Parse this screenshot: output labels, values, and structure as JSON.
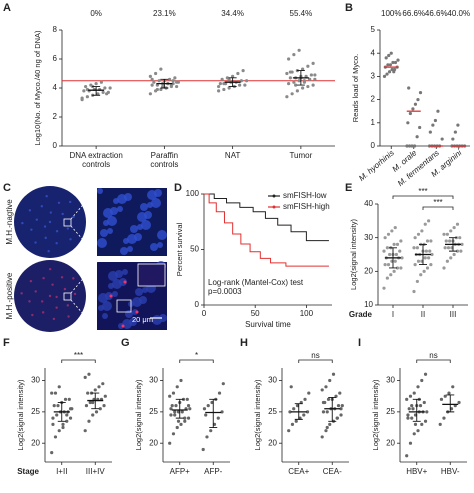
{
  "image_panel": {
    "label": "C",
    "rows": [
      "M.H.-nagtive",
      "M.H.-positive"
    ],
    "scale_bar": "20 μm"
  },
  "chart_data": [
    {
      "type": "dot",
      "label": "A",
      "ylabel": "Log10(No. of Myco./40 ng of DNA)",
      "categories": [
        "DNA extraction\ncontrols",
        "Paraffin\ncontrols",
        "NAT",
        "Tumor"
      ],
      "group_labels": [
        "0%",
        "23.1%",
        "34.4%",
        "55.4%"
      ],
      "values": [
        [
          3.2,
          3.4,
          3.5,
          3.6,
          3.7,
          3.7,
          3.8,
          3.8,
          3.9,
          3.9,
          4.0,
          4.0,
          4.1,
          4.2,
          4.3,
          4.4,
          3.6,
          3.3,
          3.9,
          4.1
        ],
        [
          3.6,
          3.8,
          3.9,
          4.0,
          4.1,
          4.1,
          4.2,
          4.2,
          4.3,
          4.3,
          4.3,
          4.4,
          4.4,
          4.5,
          4.5,
          4.6,
          4.7,
          4.8,
          5.0,
          5.3,
          4.0,
          4.2,
          4.4,
          4.6,
          3.9,
          4.1,
          4.3,
          4.5
        ],
        [
          3.8,
          3.9,
          4.0,
          4.1,
          4.2,
          4.2,
          4.3,
          4.3,
          4.4,
          4.4,
          4.5,
          4.5,
          4.6,
          4.7,
          4.8,
          5.0,
          5.2,
          4.1,
          4.3,
          4.6
        ],
        [
          3.4,
          3.6,
          3.8,
          4.0,
          4.1,
          4.2,
          4.3,
          4.4,
          4.5,
          4.5,
          4.6,
          4.6,
          4.7,
          4.7,
          4.8,
          4.8,
          4.9,
          5.0,
          5.1,
          5.2,
          5.3,
          5.5,
          5.7,
          6.0,
          6.3,
          6.6,
          4.4,
          4.6,
          4.9,
          5.1,
          4.2,
          4.7
        ]
      ],
      "centers": [
        3.85,
        4.3,
        4.4,
        4.7
      ],
      "error_bars": [
        [
          3.5,
          4.1
        ],
        [
          4.0,
          4.6
        ],
        [
          4.1,
          4.7
        ],
        [
          4.2,
          5.2
        ]
      ],
      "reference_line": 4.5,
      "reference_color": "#e03030",
      "dot_color": "#8a8a8a",
      "center_color": "#111111",
      "ylim": [
        0,
        8
      ],
      "yticks": [
        0,
        2,
        4,
        6,
        8
      ]
    },
    {
      "type": "dot",
      "label": "B",
      "ylabel": "Reads load of Myco.",
      "categories": [
        "M. hyorhinis",
        "M. orale",
        "M. fermentans",
        "M. arginini"
      ],
      "group_labels": [
        "100%",
        "66.6%",
        "46.6%",
        "40.0%"
      ],
      "values": [
        [
          3.0,
          3.1,
          3.2,
          3.3,
          3.3,
          3.4,
          3.4,
          3.5,
          3.5,
          3.6,
          3.6,
          3.7,
          3.8,
          3.9,
          4.0,
          3.2
        ],
        [
          0,
          0,
          0,
          0,
          0.4,
          0.8,
          1.0,
          1.4,
          1.6,
          1.8,
          2.0,
          2.3,
          2.5
        ],
        [
          0,
          0,
          0,
          0,
          0,
          0.3,
          0.6,
          0.9,
          1.1,
          1.5
        ],
        [
          0,
          0,
          0,
          0,
          0,
          0,
          0.3,
          0.6,
          0.9
        ]
      ],
      "centers": [
        3.4,
        1.5,
        0,
        0
      ],
      "dot_color": "#777777",
      "center_color": "#e03030",
      "italic_categories": true,
      "ylim": [
        0,
        5
      ],
      "yticks": [
        0,
        1,
        2,
        3,
        4,
        5
      ]
    },
    {
      "type": "line",
      "label": "D",
      "xlabel": "Survival time",
      "ylabel": "Percent survival",
      "annotation": "Log-rank (Mantel-Cox) test\np=0.0003",
      "legend": "upper right",
      "series": [
        {
          "name": "smFISH-low",
          "color": "#222222",
          "x": [
            0,
            10,
            10,
            22,
            22,
            35,
            35,
            48,
            48,
            60,
            60,
            72,
            72,
            85,
            85,
            100,
            100,
            122
          ],
          "values": [
            100,
            100,
            96,
            96,
            92,
            92,
            88,
            88,
            84,
            84,
            78,
            78,
            72,
            72,
            66,
            66,
            58,
            58
          ]
        },
        {
          "name": "smFISH-high",
          "color": "#e03030",
          "x": [
            0,
            5,
            5,
            12,
            12,
            20,
            20,
            28,
            28,
            36,
            36,
            45,
            45,
            55,
            55,
            65,
            65,
            80,
            80,
            122
          ],
          "values": [
            100,
            100,
            92,
            92,
            84,
            84,
            74,
            74,
            64,
            64,
            55,
            55,
            48,
            48,
            42,
            42,
            38,
            38,
            35,
            35
          ]
        }
      ],
      "xlim": [
        0,
        125
      ],
      "xticks": [
        0,
        50,
        100
      ],
      "ylim": [
        0,
        100
      ],
      "yticks": [
        0,
        50,
        100
      ]
    },
    {
      "type": "dot",
      "label": "E",
      "ylabel": "Log2(signal intensity)",
      "xlabel": "Grade",
      "categories": [
        "I",
        "II",
        "III"
      ],
      "values": [
        [
          15,
          18,
          19,
          20,
          21,
          21,
          22,
          22,
          23,
          23,
          24,
          24,
          24,
          25,
          25,
          25,
          26,
          26,
          27,
          27,
          28,
          28,
          29,
          30,
          31,
          32,
          33
        ],
        [
          14,
          17,
          19,
          20,
          21,
          22,
          22,
          23,
          23,
          24,
          24,
          25,
          25,
          25,
          26,
          26,
          26,
          27,
          27,
          28,
          28,
          29,
          29,
          30,
          31,
          32,
          34,
          35
        ],
        [
          21,
          23,
          24,
          25,
          26,
          26,
          27,
          27,
          27,
          28,
          28,
          28,
          29,
          29,
          29,
          30,
          30,
          31,
          31,
          32,
          33,
          34
        ]
      ],
      "centers": [
        24,
        25,
        28
      ],
      "error_bars": [
        [
          21,
          27
        ],
        [
          22,
          28
        ],
        [
          26,
          30
        ]
      ],
      "dot_color": "#9a9a9a",
      "center_color": "#111111",
      "significance": [
        {
          "pair": [
            0,
            2
          ],
          "label": "***"
        },
        {
          "pair": [
            1,
            2
          ],
          "label": "***"
        }
      ],
      "ylim": [
        10,
        40
      ],
      "yticks": [
        10,
        20,
        30,
        40
      ]
    },
    {
      "type": "dot",
      "label": "F",
      "ylabel": "Log2(signal intensity)",
      "xlabel": "Stage",
      "categories": [
        "I+II",
        "III+IV"
      ],
      "values": [
        [
          18.5,
          21,
          22,
          23,
          23.5,
          24,
          24,
          24.5,
          25,
          25,
          25,
          25.5,
          26,
          26,
          26.5,
          27,
          27,
          28,
          28,
          29,
          22.5,
          24.5,
          25.5,
          23
        ],
        [
          22,
          23.5,
          24.5,
          25,
          25.5,
          26,
          26,
          26.5,
          27,
          27,
          27,
          27.5,
          28,
          28,
          28.5,
          29,
          29.5,
          30.5,
          31,
          26.5
        ]
      ],
      "centers": [
        25,
        26.8
      ],
      "error_bars": [
        [
          23.5,
          26.5
        ],
        [
          25.5,
          28
        ]
      ],
      "dot_color": "#666666",
      "center_color": "#111111",
      "significance": [
        {
          "pair": [
            0,
            1
          ],
          "label": "***"
        }
      ],
      "ylim": [
        17,
        32
      ],
      "yticks": [
        20,
        25,
        30
      ]
    },
    {
      "type": "dot",
      "label": "G",
      "ylabel": "Log2(signal intensity)",
      "categories": [
        "AFP+",
        "AFP-"
      ],
      "values": [
        [
          20,
          21.5,
          22.5,
          23,
          23.5,
          24,
          24.5,
          25,
          25,
          25,
          25.5,
          25.5,
          26,
          26,
          26.5,
          27,
          27,
          27.5,
          28,
          29,
          30,
          24,
          26,
          25.5,
          24.5,
          23.5
        ],
        [
          19,
          21,
          22,
          23,
          24,
          25,
          25.5,
          26,
          26.5,
          27,
          28,
          29.5,
          24.5
        ]
      ],
      "centers": [
        25.3,
        24.9
      ],
      "error_bars": [
        [
          24,
          27
        ],
        [
          22.5,
          27
        ]
      ],
      "dot_color": "#666666",
      "center_color": "#111111",
      "significance": [
        {
          "pair": [
            0,
            1
          ],
          "label": "*"
        }
      ],
      "ylim": [
        17,
        32
      ],
      "yticks": [
        20,
        25,
        30
      ]
    },
    {
      "type": "dot",
      "label": "H",
      "ylabel": "Log2(signal intensity)",
      "categories": [
        "CEA+",
        "CEA-"
      ],
      "values": [
        [
          22,
          23,
          23.5,
          24,
          24.5,
          25,
          25,
          25.5,
          26,
          26.5,
          27,
          28,
          29
        ],
        [
          21,
          22,
          23,
          23.5,
          24,
          24.5,
          25,
          25,
          25.5,
          25.5,
          26,
          26,
          26.5,
          27,
          27,
          27.5,
          28,
          28.5,
          29,
          30,
          31,
          24,
          25.5,
          26.5,
          22.5
        ]
      ],
      "centers": [
        25,
        25.5
      ],
      "error_bars": [
        [
          23.8,
          26.3
        ],
        [
          23.5,
          27.3
        ]
      ],
      "dot_color": "#666666",
      "center_color": "#111111",
      "significance": [
        {
          "pair": [
            0,
            1
          ],
          "label": "ns"
        }
      ],
      "ylim": [
        17,
        32
      ],
      "yticks": [
        20,
        25,
        30
      ]
    },
    {
      "type": "dot",
      "label": "I",
      "ylabel": "Log2(signal intensity)",
      "categories": [
        "HBV+",
        "HBV-"
      ],
      "values": [
        [
          18,
          20,
          21.5,
          22,
          23,
          23.5,
          24,
          24,
          24.5,
          25,
          25,
          25,
          25.5,
          25.5,
          26,
          26,
          26.5,
          27,
          27.5,
          28,
          29,
          30,
          31,
          24.5,
          26,
          23,
          27
        ],
        [
          23,
          24,
          25,
          25.5,
          26,
          26.5,
          27,
          27.5,
          28,
          29
        ]
      ],
      "centers": [
        25,
        26.2
      ],
      "error_bars": [
        [
          23.5,
          27
        ],
        [
          25,
          27.7
        ]
      ],
      "dot_color": "#666666",
      "center_color": "#111111",
      "significance": [
        {
          "pair": [
            0,
            1
          ],
          "label": "ns"
        }
      ],
      "ylim": [
        17,
        32
      ],
      "yticks": [
        20,
        25,
        30
      ]
    }
  ]
}
